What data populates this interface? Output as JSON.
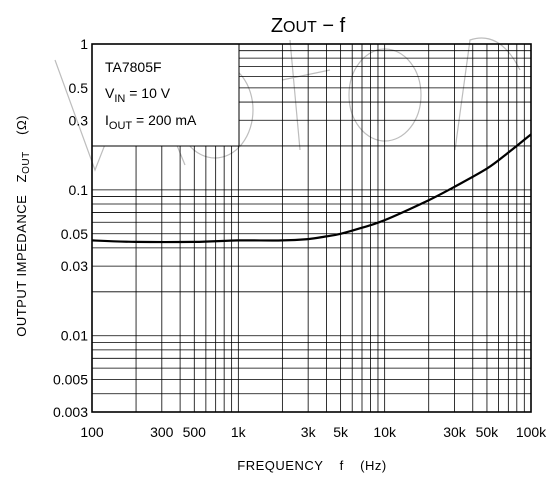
{
  "chart_data": {
    "type": "line",
    "title": {
      "main": "Z",
      "sub": "OUT",
      "rest": " − f"
    },
    "xlabel": "FREQUENCY    f    (Hz)",
    "ylabel": {
      "prefix": "OUTPUT IMPEDANCE   Z",
      "sub": "OUT",
      "suffix": "    (Ω)"
    },
    "x_scale": "log",
    "y_scale": "log",
    "xlim": [
      100,
      100000
    ],
    "ylim": [
      0.003,
      1
    ],
    "grid": true,
    "x_ticks": [
      {
        "value": 100,
        "label": "100"
      },
      {
        "value": 300,
        "label": "300"
      },
      {
        "value": 500,
        "label": "500"
      },
      {
        "value": 1000,
        "label": "1k"
      },
      {
        "value": 3000,
        "label": "3k"
      },
      {
        "value": 5000,
        "label": "5k"
      },
      {
        "value": 10000,
        "label": "10k"
      },
      {
        "value": 30000,
        "label": "30k"
      },
      {
        "value": 50000,
        "label": "50k"
      },
      {
        "value": 100000,
        "label": "100k"
      }
    ],
    "y_ticks": [
      {
        "value": 1,
        "label": "1"
      },
      {
        "value": 0.5,
        "label": "0.5"
      },
      {
        "value": 0.3,
        "label": "0.3"
      },
      {
        "value": 0.1,
        "label": "0.1"
      },
      {
        "value": 0.05,
        "label": "0.05"
      },
      {
        "value": 0.03,
        "label": "0.03"
      },
      {
        "value": 0.01,
        "label": "0.01"
      },
      {
        "value": 0.005,
        "label": "0.005"
      },
      {
        "value": 0.003,
        "label": "0.003"
      }
    ],
    "annotation": [
      {
        "main": "TA7805F",
        "sub": "",
        "rest": ""
      },
      {
        "main": "V",
        "sub": "IN",
        "rest": " = 10 V"
      },
      {
        "main": "I",
        "sub": "OUT",
        "rest": " = 200 mA"
      }
    ],
    "series": [
      {
        "x": [
          100,
          200,
          500,
          1000,
          2000,
          3000,
          4000,
          5000,
          7000,
          10000,
          20000,
          30000,
          50000,
          70000,
          100000
        ],
        "y": [
          0.045,
          0.044,
          0.044,
          0.045,
          0.045,
          0.046,
          0.048,
          0.05,
          0.055,
          0.062,
          0.085,
          0.105,
          0.14,
          0.18,
          0.24
        ],
        "color": "#000000"
      }
    ]
  }
}
